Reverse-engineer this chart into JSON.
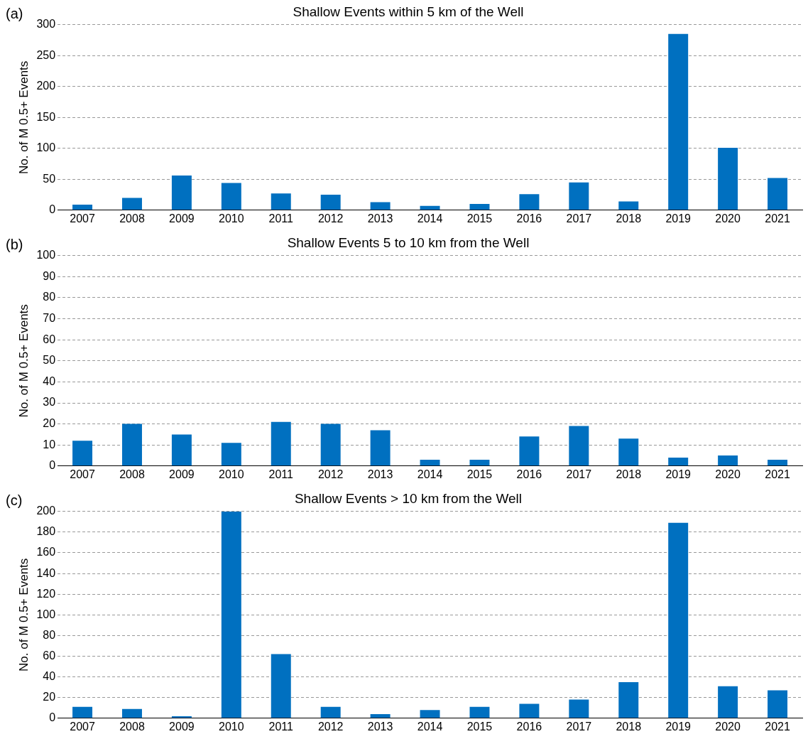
{
  "chart_data": [
    {
      "type": "bar",
      "title": "Shallow Events within 5 km of the Well",
      "ylabel": "No. of M 0.5+ Events",
      "annotations": [
        "(a)"
      ],
      "categories": [
        "2007",
        "2008",
        "2009",
        "2010",
        "2011",
        "2012",
        "2013",
        "2014",
        "2015",
        "2016",
        "2017",
        "2018",
        "2019",
        "2020",
        "2021"
      ],
      "values": [
        9,
        20,
        56,
        44,
        27,
        25,
        13,
        7,
        10,
        26,
        45,
        14,
        285,
        101,
        52
      ],
      "color": "#0070c0",
      "ylim": [
        0,
        300
      ],
      "yticks": [
        0,
        50,
        100,
        150,
        200,
        250,
        300
      ],
      "grid": "y",
      "legend": false
    },
    {
      "type": "bar",
      "title": "Shallow Events 5 to 10 km from the Well",
      "ylabel": "No. of M 0.5+ Events",
      "annotations": [
        "(b)"
      ],
      "categories": [
        "2007",
        "2008",
        "2009",
        "2010",
        "2011",
        "2012",
        "2013",
        "2014",
        "2015",
        "2016",
        "2017",
        "2018",
        "2019",
        "2020",
        "2021"
      ],
      "values": [
        12,
        20,
        15,
        11,
        21,
        20,
        17,
        3,
        3,
        14,
        19,
        13,
        4,
        5,
        3
      ],
      "color": "#0070c0",
      "ylim": [
        0,
        100
      ],
      "yticks": [
        0,
        10,
        20,
        30,
        40,
        50,
        60,
        70,
        80,
        90,
        100
      ],
      "grid": "y",
      "legend": false
    },
    {
      "type": "bar",
      "title": "Shallow Events > 10 km from the Well",
      "ylabel": "No. of M 0.5+ Events",
      "annotations": [
        "(c)"
      ],
      "categories": [
        "2007",
        "2008",
        "2009",
        "2010",
        "2011",
        "2012",
        "2013",
        "2014",
        "2015",
        "2016",
        "2017",
        "2018",
        "2019",
        "2020",
        "2021"
      ],
      "values": [
        11,
        9,
        2,
        200,
        62,
        11,
        4,
        8,
        11,
        14,
        18,
        35,
        189,
        31,
        27
      ],
      "color": "#0070c0",
      "ylim": [
        0,
        200
      ],
      "yticks": [
        0,
        20,
        40,
        60,
        80,
        100,
        120,
        140,
        160,
        180,
        200
      ],
      "grid": "y",
      "legend": false
    }
  ]
}
